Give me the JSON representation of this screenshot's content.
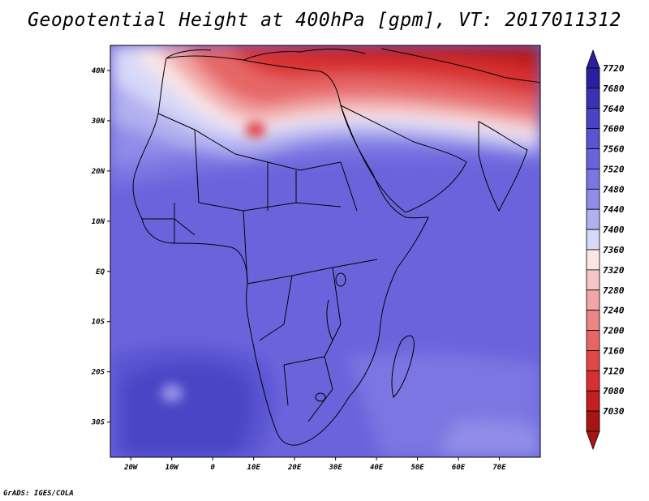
{
  "title": "Geopotential Height at 400hPa [gpm], VT: 2017011312",
  "credit": "GrADS: IGES/COLA",
  "map": {
    "lon_range": [
      -25,
      80
    ],
    "lat_range": [
      -37,
      45
    ],
    "x_ticks": [
      {
        "value": -20,
        "label": "20W"
      },
      {
        "value": -10,
        "label": "10W"
      },
      {
        "value": 0,
        "label": "0"
      },
      {
        "value": 10,
        "label": "10E"
      },
      {
        "value": 20,
        "label": "20E"
      },
      {
        "value": 30,
        "label": "30E"
      },
      {
        "value": 40,
        "label": "40E"
      },
      {
        "value": 50,
        "label": "50E"
      },
      {
        "value": 60,
        "label": "60E"
      },
      {
        "value": 70,
        "label": "70E"
      }
    ],
    "y_ticks": [
      {
        "value": 40,
        "label": "40N"
      },
      {
        "value": 30,
        "label": "30N"
      },
      {
        "value": 20,
        "label": "20N"
      },
      {
        "value": 10,
        "label": "10N"
      },
      {
        "value": 0,
        "label": "EQ"
      },
      {
        "value": -10,
        "label": "10S"
      },
      {
        "value": -20,
        "label": "20S"
      },
      {
        "value": -30,
        "label": "30S"
      }
    ]
  },
  "colorbar": {
    "levels": [
      {
        "label": "7720",
        "color": "#2a1f9e"
      },
      {
        "label": "7680",
        "color": "#3a32b2"
      },
      {
        "label": "7640",
        "color": "#4a44c4"
      },
      {
        "label": "7600",
        "color": "#5a54d2"
      },
      {
        "label": "7560",
        "color": "#6a64dc"
      },
      {
        "label": "7520",
        "color": "#7b76e2"
      },
      {
        "label": "7480",
        "color": "#908ce8"
      },
      {
        "label": "7440",
        "color": "#b2b0f0"
      },
      {
        "label": "7400",
        "color": "#d8d8f8"
      },
      {
        "label": "7360",
        "color": "#fae6e6"
      },
      {
        "label": "7320",
        "color": "#f6c6c6"
      },
      {
        "label": "7280",
        "color": "#f2a6a6"
      },
      {
        "label": "7240",
        "color": "#ec8686"
      },
      {
        "label": "7200",
        "color": "#e66666"
      },
      {
        "label": "7160",
        "color": "#e04848"
      },
      {
        "label": "7120",
        "color": "#d83030"
      },
      {
        "label": "7080",
        "color": "#c41e1e"
      },
      {
        "label": "7030",
        "color": "#a81414"
      }
    ]
  }
}
